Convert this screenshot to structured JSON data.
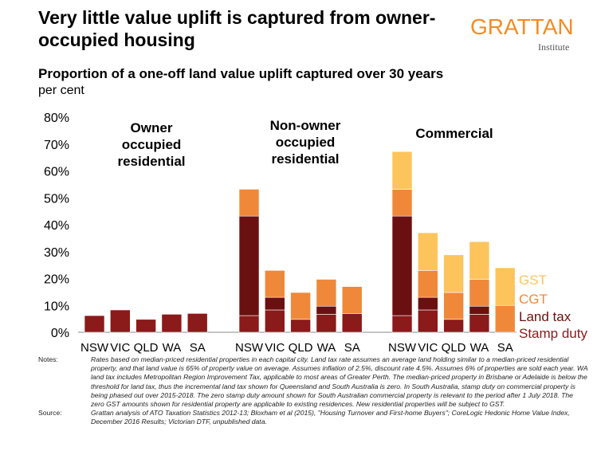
{
  "title": "Very little value uplift is captured from owner-occupied housing",
  "logo": {
    "name": "GRATTAN",
    "sub": "Institute"
  },
  "subtitle": "Proportion of a one-off land value uplift captured over 30 years",
  "units": "per cent",
  "colors": {
    "stamp_duty": "#8b1a1a",
    "land_tax": "#6b1010",
    "cgt": "#f0883a",
    "gst": "#fdc45c",
    "stamp_duty_label": "#8b1a1a",
    "land_tax_label": "#6b1010",
    "cgt_label": "#f0883a",
    "gst_label": "#fdc45c"
  },
  "chart_data": {
    "type": "bar",
    "stacked": true,
    "ylim": [
      0,
      80
    ],
    "yticks": [
      "0%",
      "10%",
      "20%",
      "30%",
      "40%",
      "50%",
      "60%",
      "70%",
      "80%"
    ],
    "groups": [
      {
        "label": "Owner occupied residential",
        "categories": [
          "NSW",
          "VIC",
          "QLD",
          "WA",
          "SA"
        ]
      },
      {
        "label": "Non-owner occupied residential",
        "categories": [
          "NSW",
          "VIC",
          "QLD",
          "WA",
          "SA"
        ]
      },
      {
        "label": "Commercial",
        "categories": [
          "NSW",
          "VIC",
          "QLD",
          "WA",
          "SA"
        ]
      }
    ],
    "series": [
      {
        "name": "Stamp duty",
        "values": [
          6.2,
          8.3,
          4.8,
          6.7,
          7.0,
          6.2,
          8.3,
          4.8,
          6.7,
          7.0,
          6.2,
          8.3,
          4.8,
          6.7,
          0
        ]
      },
      {
        "name": "Land tax",
        "values": [
          0,
          0,
          0,
          0,
          0,
          37.0,
          4.7,
          0,
          3.0,
          0,
          37.0,
          4.7,
          0,
          3.0,
          0
        ]
      },
      {
        "name": "CGT",
        "values": [
          0,
          0,
          0,
          0,
          0,
          10.0,
          10.0,
          10.0,
          10.0,
          10.0,
          10.0,
          10.0,
          10.0,
          10.0,
          10.0
        ]
      },
      {
        "name": "GST",
        "values": [
          0,
          0,
          0,
          0,
          0,
          0,
          0,
          0,
          0,
          0,
          14.0,
          14.0,
          14.0,
          14.0,
          14.0
        ]
      }
    ],
    "legend": [
      "GST",
      "CGT",
      "Land tax",
      "Stamp duty"
    ],
    "legend_position": "right"
  },
  "notes": {
    "notes_label": "Notes:",
    "notes_text": "Rates based on median-priced residential properties in each capital city. Land tax rate assumes an average land holding similar to a median-priced residential property, and that land value is 65% of property value on average. Assumes inflation of 2.5%, discount rate 4.5%. Assumes 6% of properties are sold each year. WA land tax includes Metropolitan Region Improvement Tax, applicable to most areas of Greater Perth. The median-priced property in Brisbane or Adelaide is below the threshold for land tax, thus the incremental land tax shown for Queensland and South Australia is zero. In South Australia, stamp duty on commercial property is being phased out over 2015-2018. The zero stamp duty amount shown for South Australian commercial property is relevant to the period after 1 July 2018. The zero GST amounts shown for residential property are applicable to existing residences. New residential properties will be subject to GST.",
    "source_label": "Source:",
    "source_text": "Grattan analysis of ATO Taxation Statistics 2012-13; Bloxham et al (2015), \"Housing Turnover and First-home Buyers\"; CoreLogic Hedonic Home Value Index, December 2016 Results; Victorian DTF, unpublished data."
  }
}
